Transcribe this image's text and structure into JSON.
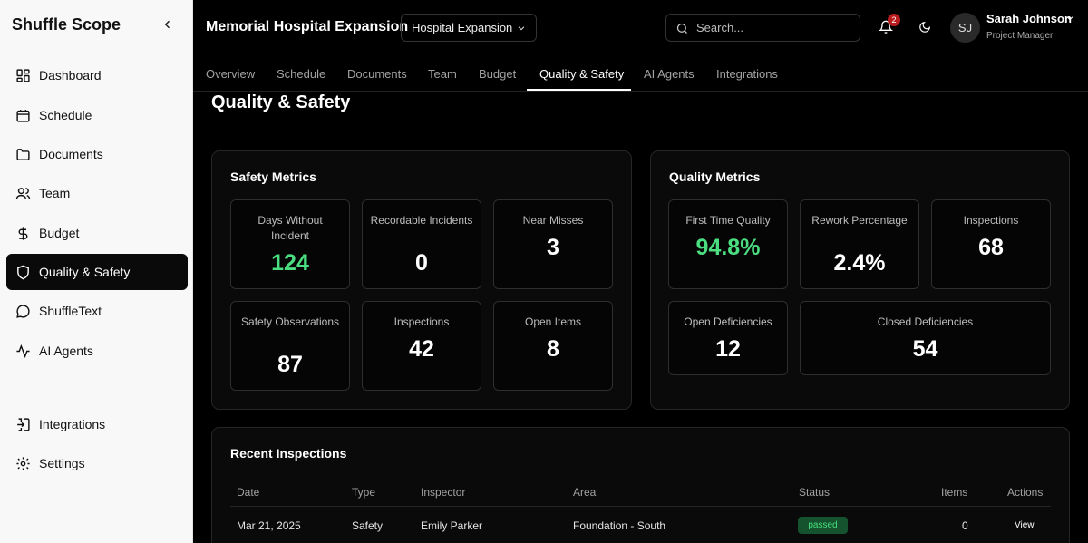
{
  "sidebar": {
    "brand": "Shuffle Scope",
    "items": [
      {
        "label": "Dashboard"
      },
      {
        "label": "Schedule"
      },
      {
        "label": "Documents"
      },
      {
        "label": "Team"
      },
      {
        "label": "Budget"
      },
      {
        "label": "Quality & Safety"
      },
      {
        "label": "ShuffleText"
      },
      {
        "label": "AI Agents"
      },
      {
        "label": "Integrations"
      },
      {
        "label": "Settings"
      }
    ],
    "active": "Quality & Safety"
  },
  "header": {
    "project_title": "Memorial Hospital Expansion",
    "project_select": "Hospital Expansion",
    "search_placeholder": "Search...",
    "notification_count": "2",
    "user": {
      "initials": "SJ",
      "name": "Sarah Johnson",
      "role": "Project Manager"
    }
  },
  "tabs": [
    {
      "label": "Overview"
    },
    {
      "label": "Schedule"
    },
    {
      "label": "Documents"
    },
    {
      "label": "Team"
    },
    {
      "label": "Budget"
    },
    {
      "label": "Quality & Safety"
    },
    {
      "label": "AI Agents"
    },
    {
      "label": "Integrations"
    }
  ],
  "active_tab": "Quality & Safety",
  "page_title": "Quality & Safety",
  "safety": {
    "title": "Safety Metrics",
    "metrics": [
      {
        "label": "Days Without Incident",
        "value": "124",
        "accent": "#4ade80"
      },
      {
        "label": "Recordable Incidents",
        "value": "0"
      },
      {
        "label": "Near Misses",
        "value": "3"
      },
      {
        "label": "Safety Observations",
        "value": "87"
      },
      {
        "label": "Inspections",
        "value": "42"
      },
      {
        "label": "Open Items",
        "value": "8"
      }
    ]
  },
  "quality": {
    "title": "Quality Metrics",
    "metrics": [
      {
        "label": "First Time Quality",
        "value": "94.8%",
        "accent": "#4ade80"
      },
      {
        "label": "Rework Percentage",
        "value": "2.4%"
      },
      {
        "label": "Inspections",
        "value": "68"
      },
      {
        "label": "Open Deficiencies",
        "value": "12"
      },
      {
        "label": "Closed Deficiencies",
        "value": "54"
      }
    ]
  },
  "inspections": {
    "title": "Recent Inspections",
    "columns": [
      "Date",
      "Type",
      "Inspector",
      "Area",
      "Status",
      "Items",
      "Actions"
    ],
    "rows": [
      {
        "date": "Mar 21, 2025",
        "type": "Safety",
        "inspector": "Emily Parker",
        "area": "Foundation - South",
        "status": "passed",
        "items": "0",
        "action": "View"
      }
    ]
  },
  "colors": {
    "background": "#000000",
    "sidebar": "#f8f8f8",
    "success": "#4ade80",
    "badge": "#b91c1c"
  }
}
